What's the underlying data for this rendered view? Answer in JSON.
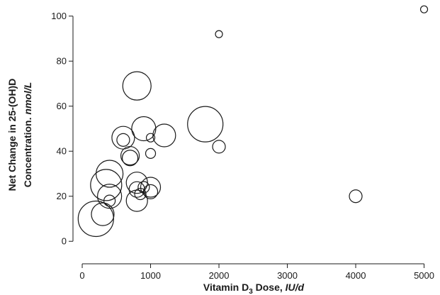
{
  "chart_data": {
    "type": "scatter",
    "x_label": [
      "Vitamin D",
      "3",
      " Dose, ",
      "IU/d"
    ],
    "y_label": [
      [
        "Net Change in 25-(OH)D"
      ],
      [
        "Concentration. ",
        "nmol/L"
      ]
    ],
    "x": [
      200,
      300,
      350,
      400,
      400,
      400,
      600,
      600,
      700,
      700,
      800,
      800,
      800,
      800,
      900,
      850,
      900,
      1000,
      1000,
      1000,
      1000,
      1200,
      1800,
      2000,
      2000,
      4000,
      5000
    ],
    "values": [
      10,
      12,
      25,
      30,
      18,
      20,
      46,
      45,
      38,
      37,
      69,
      26,
      18,
      23,
      50,
      21,
      24,
      24,
      22,
      46,
      39,
      47,
      52,
      92,
      42,
      20,
      103
    ],
    "sizes": [
      625,
      256,
      484,
      361,
      64,
      289,
      256,
      81,
      169,
      121,
      400,
      225,
      225,
      121,
      289,
      64,
      64,
      196,
      100,
      36,
      49,
      256,
      625,
      25,
      81,
      81,
      25
    ],
    "color": "#1a1a1a",
    "xlim": [
      -135,
      5150
    ],
    "ylim": [
      -10,
      104
    ],
    "xticks": [
      0,
      1000,
      2000,
      3000,
      4000,
      5000
    ],
    "yticks": [
      0,
      20,
      40,
      60,
      80,
      100
    ],
    "grid": false
  }
}
